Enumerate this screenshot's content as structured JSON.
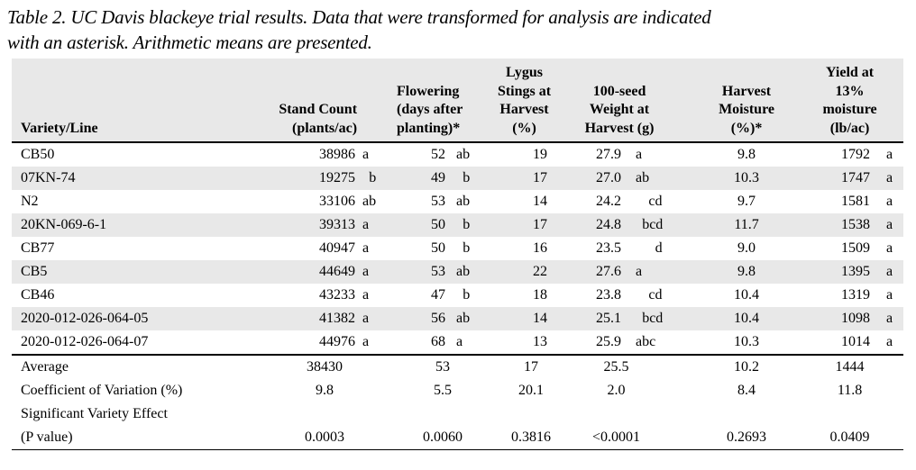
{
  "page": {
    "caption": "Table 2. UC Davis blackeye trial results. Data that were transformed for analysis are indicated\nwith an asterisk. Arithmetic means are presented."
  },
  "colors": {
    "background": "#ffffff",
    "row_stripe": "#e8e8e8",
    "rule": "#000000",
    "text": "#000000"
  },
  "table": {
    "headers": {
      "variety": "Variety/Line",
      "stand": "Stand Count\n(plants/ac)",
      "flowering": "Flowering\n(days after\nplanting)*",
      "lygus": "Lygus\nStings at\nHarvest\n(%)",
      "seed": "100-seed\nWeight at\nHarvest (g)",
      "moisture": "Harvest\nMoisture\n(%)*",
      "yield": "Yield at\n13%\nmoisture\n(lb/ac)"
    },
    "rows": [
      {
        "variety": "CB50",
        "stand": "38986",
        "stand_sig": "a",
        "flower": "52",
        "flower_sig": "ab",
        "lygus": "19",
        "seed": "27.9",
        "seed_sig": "a",
        "moisture": "9.8",
        "yield": "1792",
        "yield_sig": "a"
      },
      {
        "variety": "07KN-74",
        "stand": "19275",
        "stand_sig": "b",
        "flower": "49",
        "flower_sig": "b",
        "lygus": "17",
        "seed": "27.0",
        "seed_sig": "ab",
        "moisture": "10.3",
        "yield": "1747",
        "yield_sig": "a"
      },
      {
        "variety": "N2",
        "stand": "33106",
        "stand_sig": "ab",
        "flower": "53",
        "flower_sig": "ab",
        "lygus": "14",
        "seed": "24.2",
        "seed_sig": "cd",
        "moisture": "9.7",
        "yield": "1581",
        "yield_sig": "a"
      },
      {
        "variety": "20KN-069-6-1",
        "stand": "39313",
        "stand_sig": "a",
        "flower": "50",
        "flower_sig": "b",
        "lygus": "17",
        "seed": "24.8",
        "seed_sig": "bcd",
        "moisture": "11.7",
        "yield": "1538",
        "yield_sig": "a"
      },
      {
        "variety": "CB77",
        "stand": "40947",
        "stand_sig": "a",
        "flower": "50",
        "flower_sig": "b",
        "lygus": "16",
        "seed": "23.5",
        "seed_sig": "d",
        "moisture": "9.0",
        "yield": "1509",
        "yield_sig": "a"
      },
      {
        "variety": "CB5",
        "stand": "44649",
        "stand_sig": "a",
        "flower": "53",
        "flower_sig": "ab",
        "lygus": "22",
        "seed": "27.6",
        "seed_sig": "a",
        "moisture": "9.8",
        "yield": "1395",
        "yield_sig": "a"
      },
      {
        "variety": "CB46",
        "stand": "43233",
        "stand_sig": "a",
        "flower": "47",
        "flower_sig": "b",
        "lygus": "18",
        "seed": "23.8",
        "seed_sig": "cd",
        "moisture": "10.4",
        "yield": "1319",
        "yield_sig": "a"
      },
      {
        "variety": "2020-012-026-064-05",
        "stand": "41382",
        "stand_sig": "a",
        "flower": "56",
        "flower_sig": "ab",
        "lygus": "14",
        "seed": "25.1",
        "seed_sig": "bcd",
        "moisture": "10.4",
        "yield": "1098",
        "yield_sig": "a"
      },
      {
        "variety": "2020-012-026-064-07",
        "stand": "44976",
        "stand_sig": "a",
        "flower": "68",
        "flower_sig": "a",
        "lygus": "13",
        "seed": "25.9",
        "seed_sig": "abc",
        "moisture": "10.3",
        "yield": "1014",
        "yield_sig": "a"
      }
    ],
    "summary": [
      {
        "label": "Average",
        "stand": "38430",
        "flower": "53",
        "lygus": "17",
        "seed": "25.5",
        "moisture": "10.2",
        "yield": "1444"
      },
      {
        "label": "Coefficient of Variation (%)",
        "stand": "9.8",
        "flower": "5.5",
        "lygus": "20.1",
        "seed": "2.0",
        "moisture": "8.4",
        "yield": "11.8"
      },
      {
        "label": "Significant Variety Effect\n(P value)",
        "stand": "0.0003",
        "flower": "0.0060",
        "lygus": "0.3816",
        "seed": "<0.0001",
        "moisture": "0.2693",
        "yield": "0.0409"
      }
    ]
  }
}
